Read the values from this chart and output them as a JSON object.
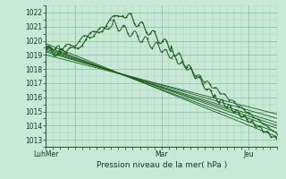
{
  "background_color": "#c8e8d8",
  "plot_bg_color": "#c8e8d8",
  "grid_color_major": "#88bb99",
  "grid_color_minor": "#aaccbb",
  "line_color": "#1a5c1a",
  "ylabel_ticks": [
    1013,
    1014,
    1015,
    1016,
    1017,
    1018,
    1019,
    1020,
    1021,
    1022
  ],
  "ylim": [
    1012.5,
    1022.5
  ],
  "xlim": [
    0,
    96
  ],
  "xtick_positions": [
    0,
    12,
    48,
    84
  ],
  "xtick_labels": [
    "LuhMer",
    "",
    "Mar",
    "Jeu"
  ],
  "xlabel": "Pression niveau de la mer( hPa )",
  "num_lines": 8
}
